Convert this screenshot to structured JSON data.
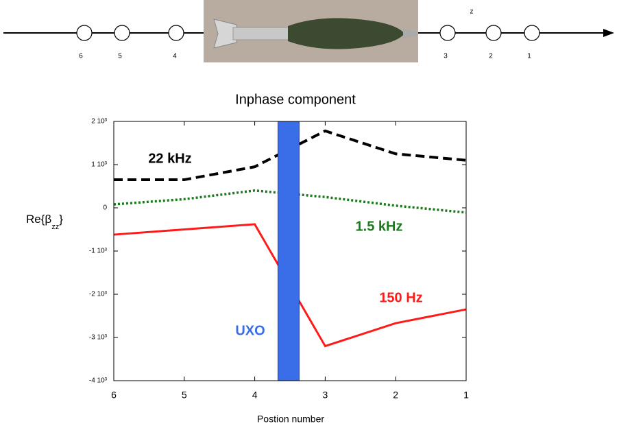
{
  "diagram": {
    "axis_label": "z",
    "nodes": [
      "6",
      "5",
      "4",
      "3",
      "2",
      "1"
    ]
  },
  "chart_data": {
    "type": "line",
    "title": "Inphase component",
    "xlabel": "Postion number",
    "ylabel": {
      "main": "Re{β",
      "subscript": "zz",
      "close": "}"
    },
    "x": [
      6,
      5,
      4,
      3,
      2,
      1
    ],
    "xlim": [
      6,
      1
    ],
    "xticks": [
      6,
      5,
      4,
      3,
      2,
      1
    ],
    "ylim": [
      -4000,
      2000
    ],
    "yticks": [
      {
        "value": -4000,
        "label": "-4 10³"
      },
      {
        "value": -3000,
        "label": "-3 10³"
      },
      {
        "value": -2000,
        "label": "-2 10³"
      },
      {
        "value": -1000,
        "label": "-1 10³"
      },
      0,
      {
        "value": 1000,
        "label": "1 10³"
      },
      {
        "value": 2000,
        "label": "2 10³"
      }
    ],
    "series": [
      {
        "name": "22 kHz",
        "color": "#000000",
        "style": "dashed",
        "values": [
          650,
          650,
          950,
          1780,
          1250,
          1100
        ]
      },
      {
        "name": "1.5 kHz",
        "color": "#1a7a1a",
        "style": "dotted",
        "values": [
          80,
          200,
          400,
          250,
          50,
          -110
        ]
      },
      {
        "name": "150 Hz",
        "color": "#ff1a1a",
        "style": "solid",
        "values": [
          -620,
          -500,
          -380,
          -3200,
          -2670,
          -2350
        ]
      }
    ],
    "band": {
      "label": "UXO",
      "xrange": [
        3.67,
        3.37
      ],
      "color": "#3a6ee8"
    }
  }
}
